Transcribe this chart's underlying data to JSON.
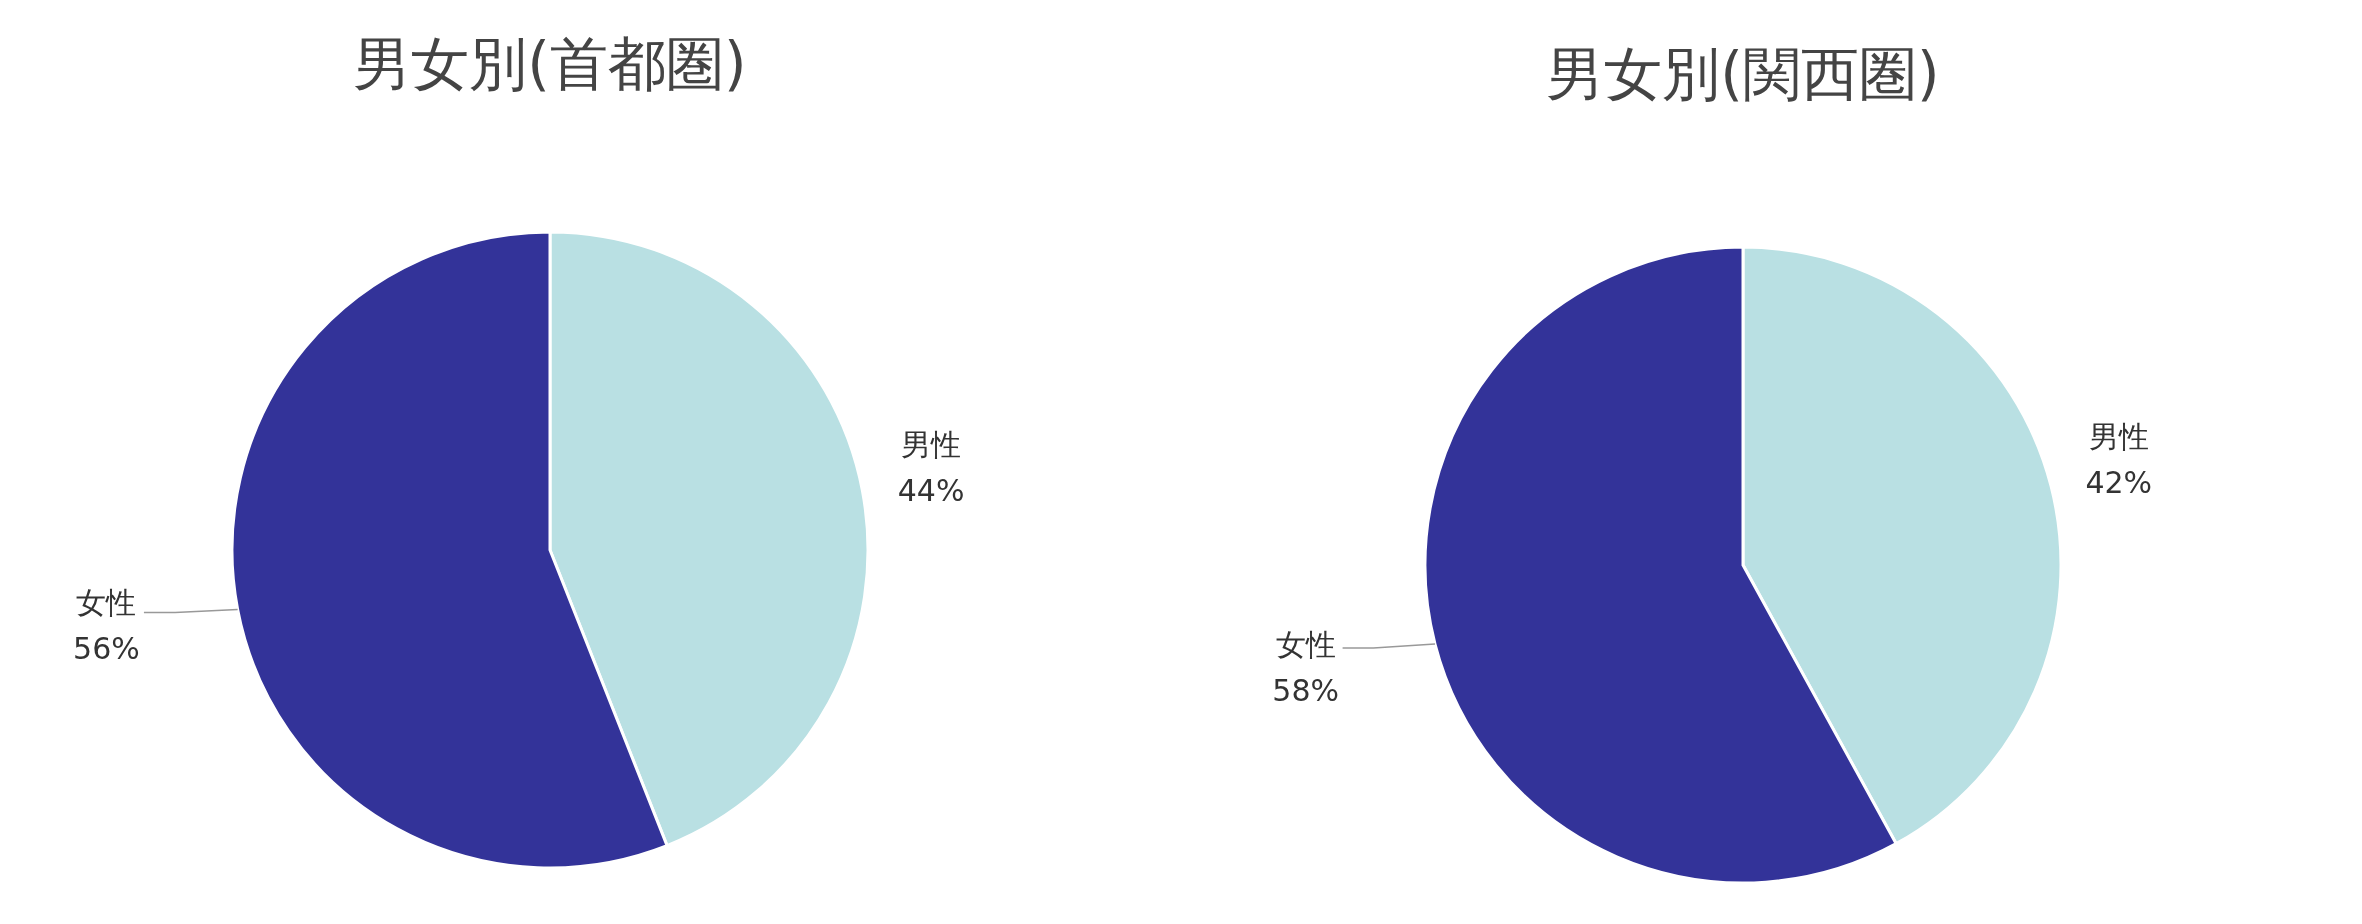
{
  "chart_data": [
    {
      "type": "pie",
      "title": "男女別(首都圏)",
      "categories": [
        "男性",
        "女性"
      ],
      "values": [
        44,
        56
      ],
      "colors": [
        "#b9e0e3",
        "#333399"
      ],
      "value_labels": [
        "44%",
        "56%"
      ]
    },
    {
      "type": "pie",
      "title": "男女別(関西圏)",
      "categories": [
        "男性",
        "女性"
      ],
      "values": [
        42,
        58
      ],
      "colors": [
        "#b9e0e3",
        "#333399"
      ],
      "value_labels": [
        "42%",
        "58%"
      ]
    }
  ]
}
